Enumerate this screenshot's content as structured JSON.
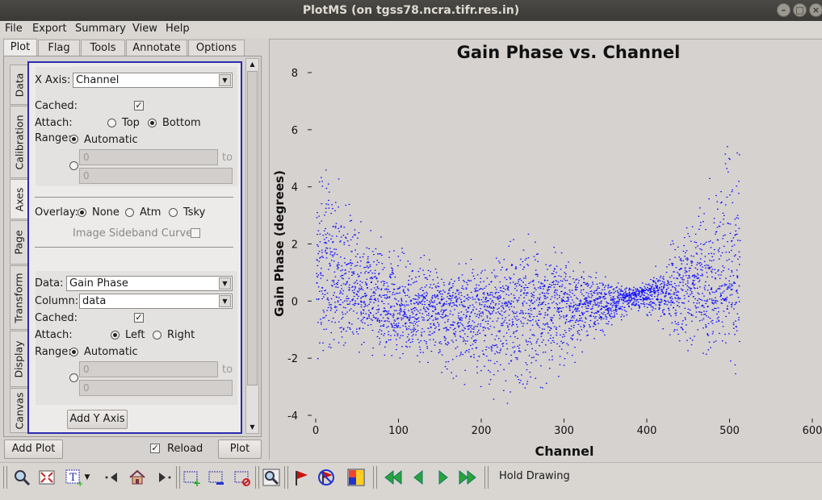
{
  "window": {
    "title": "PlotMS (on tgss78.ncra.tifr.res.in)"
  },
  "menu": [
    "File",
    "Export",
    "Summary",
    "View",
    "Help"
  ],
  "tabs": [
    "Plot",
    "Flag",
    "Tools",
    "Annotate",
    "Options"
  ],
  "side_tabs": [
    "Data",
    "Calibration",
    "Axes",
    "Page",
    "Transform",
    "Display",
    "Canvas"
  ],
  "x_axis": {
    "label": "X Axis:",
    "value": "Channel",
    "cached_label": "Cached:",
    "attach_label": "Attach:",
    "attach_top": "Top",
    "attach_bottom": "Bottom",
    "range_label": "Range:",
    "range_auto": "Automatic",
    "min": "0",
    "max": "0",
    "to": "to"
  },
  "overlay": {
    "label": "Overlay:",
    "none": "None",
    "atm": "Atm",
    "tsky": "Tsky",
    "sideband": "Image Sideband Curve:"
  },
  "y_axis": {
    "data_label": "Data:",
    "data_value": "Gain Phase",
    "column_label": "Column:",
    "column_value": "data",
    "cached_label": "Cached:",
    "attach_label": "Attach:",
    "attach_left": "Left",
    "attach_right": "Right",
    "range_label": "Range:",
    "range_auto": "Automatic",
    "min": "0",
    "max": "0",
    "to": "to",
    "add_button": "Add Y Axis"
  },
  "bottom": {
    "add_plot": "Add Plot",
    "reload": "Reload",
    "plot": "Plot"
  },
  "toolbar": {
    "hold_drawing": "Hold Drawing"
  },
  "chart_data": {
    "type": "scatter",
    "title": "Gain Phase vs. Channel",
    "xlabel": "Channel",
    "ylabel": "Gain Phase (degrees)",
    "xlim": [
      0,
      600
    ],
    "ylim": [
      -4,
      8
    ],
    "xticks": [
      "0",
      "100",
      "200",
      "300",
      "400",
      "500",
      "600"
    ],
    "yticks": [
      "-4",
      "-2",
      "0",
      "2",
      "4",
      "6",
      "8"
    ],
    "point_color": "#0000ff",
    "grid": false,
    "envelope": {
      "x": [
        0,
        50,
        100,
        150,
        200,
        250,
        300,
        350,
        380,
        400,
        450,
        510
      ],
      "center": [
        1.0,
        0.3,
        -0.5,
        -0.2,
        -0.5,
        0.0,
        0.0,
        -0.1,
        0.2,
        0.3,
        0.5,
        0.5
      ],
      "upper": [
        5.2,
        3.5,
        2.0,
        1.5,
        1.5,
        2.5,
        1.7,
        1.0,
        0.5,
        0.8,
        3.0,
        6.4
      ],
      "lower": [
        -2.0,
        -1.8,
        -2.2,
        -2.5,
        -3.3,
        -3.8,
        -2.5,
        -1.2,
        -0.3,
        -0.5,
        -1.8,
        -2.8
      ]
    }
  }
}
